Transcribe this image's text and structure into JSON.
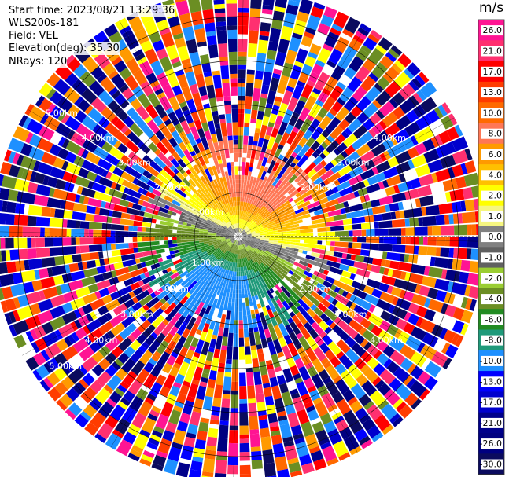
{
  "header": {
    "start_time": "Start time: 2023/08/21 13:29:36",
    "instrument": "WLS200s-181",
    "field": "Field: VEL",
    "elevation": "Elevation(deg): 35.30",
    "nrays": "NRays: 120"
  },
  "chart_data": {
    "type": "heatmap",
    "projection": "polar-ppi",
    "field": "VEL",
    "units": "m/s",
    "n_rays": 120,
    "range_rings_km": [
      1.0,
      2.0,
      3.0,
      4.0,
      5.0
    ],
    "ring_labels": [
      {
        "text": "1.00km",
        "ring": 1,
        "positions": [
          "upper-left",
          "lower-left"
        ]
      },
      {
        "text": "2.00km",
        "ring": 2,
        "positions": [
          "upper-left",
          "upper-right",
          "lower-left",
          "lower-right"
        ]
      },
      {
        "text": "3.00km",
        "ring": 3,
        "positions": [
          "upper-left",
          "upper-right",
          "lower-left",
          "lower-right"
        ]
      },
      {
        "text": "4.00km",
        "ring": 4,
        "positions": [
          "upper-left",
          "upper-right",
          "lower-left",
          "lower-right"
        ]
      },
      {
        "text": "5.00km",
        "ring": 5,
        "positions": [
          "upper-left",
          "lower-left"
        ]
      }
    ],
    "colorbar": {
      "label": "m/s",
      "tick_labels": [
        "26.0",
        "21.0",
        "17.0",
        "13.0",
        "10.0",
        "8.0",
        "6.0",
        "4.0",
        "2.0",
        "1.0",
        "0.0",
        "-1.0",
        "-2.0",
        "-4.0",
        "-6.0",
        "-8.0",
        "-10.0",
        "-13.0",
        "-17.0",
        "-21.0",
        "-26.0",
        "-30.0"
      ],
      "colors": [
        "#ff1493",
        "#ff3070",
        "#ff0000",
        "#ff3c00",
        "#ff6a00",
        "#ff7755",
        "#ff9a00",
        "#ffc000",
        "#ffff00",
        "#f6f680",
        "#808080",
        "#606060",
        "#9acd32",
        "#6b8e23",
        "#228b22",
        "#1f9a7a",
        "#1e90ff",
        "#0000ff",
        "#0000cd",
        "#00008b",
        "#000080",
        "#0b0b5e"
      ]
    },
    "pattern": {
      "clean_radius_km": 1.35,
      "mid_radius_km": 2.1,
      "max_range_km": 5.6,
      "toward_sector": "north/northeast (positive velocities)",
      "away_sector": "south/southwest (negative velocities)"
    }
  }
}
